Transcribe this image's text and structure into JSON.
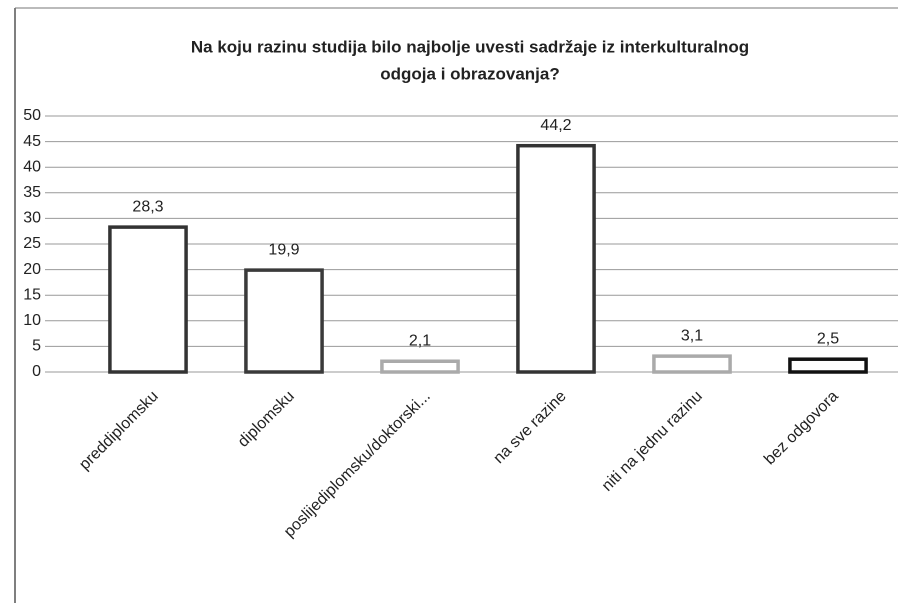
{
  "chart_data": {
    "type": "bar",
    "title": [
      "Na koju razinu studija bilo najbolje uvesti sadržaje iz interkulturalnog",
      "odgoja i obrazovanja?"
    ],
    "categories": [
      "preddiplomsku",
      "diplomsku",
      "poslijediplomsku/doktorski...",
      "na sve razine",
      "niti na jednu razinu",
      "bez odgovora"
    ],
    "values": [
      28.3,
      19.9,
      2.1,
      44.2,
      3.1,
      2.5
    ],
    "value_labels": [
      "28,3",
      "19,9",
      "2,1",
      "44,2",
      "3,1",
      "2,5"
    ],
    "colors": [
      "#333333",
      "#3a3a3a",
      "#aaaaaa",
      "#333333",
      "#aaaaaa",
      "#111111"
    ],
    "ylim": [
      0,
      50
    ],
    "yticks": [
      0,
      5,
      10,
      15,
      20,
      25,
      30,
      35,
      40,
      45,
      50
    ],
    "grid": true
  }
}
